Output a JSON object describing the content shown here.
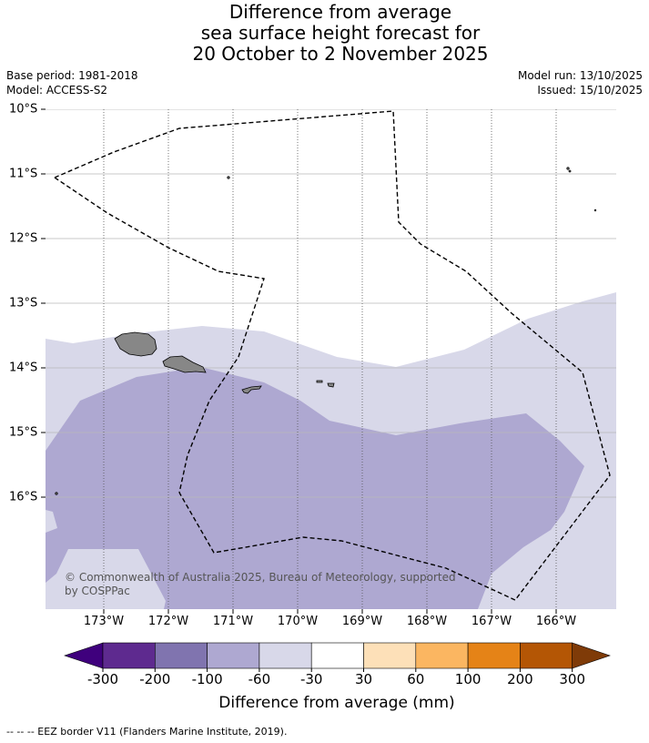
{
  "title": {
    "line1": "Difference from average",
    "line2": "sea surface height forecast for",
    "line3": "20 October to 2 November 2025"
  },
  "meta": {
    "base_period": "Base period: 1981-2018",
    "model": "Model: ACCESS-S2",
    "model_run": "Model run: 13/10/2025",
    "issued": "Issued: 15/10/2025"
  },
  "map": {
    "lat_ticks": [
      {
        "value": -10,
        "label": "10°S"
      },
      {
        "value": -11,
        "label": "11°S"
      },
      {
        "value": -12,
        "label": "12°S"
      },
      {
        "value": -13,
        "label": "13°S"
      },
      {
        "value": -14,
        "label": "14°S"
      },
      {
        "value": -15,
        "label": "15°S"
      },
      {
        "value": -16,
        "label": "16°S"
      }
    ],
    "lon_ticks": [
      {
        "value": -173,
        "label": "173°W"
      },
      {
        "value": -172,
        "label": "172°W"
      },
      {
        "value": -171,
        "label": "171°W"
      },
      {
        "value": -170,
        "label": "170°W"
      },
      {
        "value": -169,
        "label": "169°W"
      },
      {
        "value": -168,
        "label": "168°W"
      },
      {
        "value": -167,
        "label": "167°W"
      },
      {
        "value": -166,
        "label": "166°W"
      }
    ],
    "copyright_line1": "© Commonwealth of Australia 2025, Bureau of Meteorology, supported",
    "copyright_line2": "by COSPPac",
    "land_color": "#878787",
    "eez_color": "#000000"
  },
  "colorbar": {
    "title": "Difference from average (mm)",
    "colors": [
      "#3f007d",
      "#5e2a8f",
      "#8074af",
      "#aea8d1",
      "#d8d8e9",
      "#ffffff",
      "#fde0b8",
      "#fbb661",
      "#e58317",
      "#b45605",
      "#7f3b08"
    ],
    "tick_labels": [
      "-300",
      "-200",
      "-100",
      "-60",
      "-30",
      "30",
      "60",
      "100",
      "200",
      "300"
    ]
  },
  "footer": {
    "eez_legend": "--  --  -- EEZ border V11 (Flanders Marine Institute, 2019)."
  }
}
